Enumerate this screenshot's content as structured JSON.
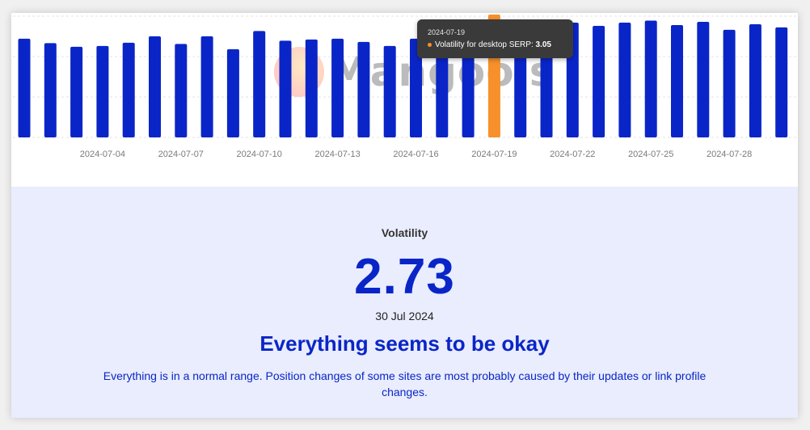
{
  "chart_data": {
    "type": "bar",
    "x": [
      "2024-07-01",
      "2024-07-02",
      "2024-07-03",
      "2024-07-04",
      "2024-07-05",
      "2024-07-06",
      "2024-07-07",
      "2024-07-08",
      "2024-07-09",
      "2024-07-10",
      "2024-07-11",
      "2024-07-12",
      "2024-07-13",
      "2024-07-14",
      "2024-07-15",
      "2024-07-16",
      "2024-07-17",
      "2024-07-18",
      "2024-07-19",
      "2024-07-20",
      "2024-07-21",
      "2024-07-22",
      "2024-07-23",
      "2024-07-24",
      "2024-07-25",
      "2024-07-26",
      "2024-07-27",
      "2024-07-28",
      "2024-07-29",
      "2024-07-30"
    ],
    "values": [
      2.45,
      2.34,
      2.25,
      2.27,
      2.35,
      2.51,
      2.32,
      2.51,
      2.19,
      2.64,
      2.4,
      2.43,
      2.45,
      2.37,
      2.27,
      2.45,
      2.55,
      2.5,
      3.05,
      2.55,
      2.8,
      2.85,
      2.77,
      2.85,
      2.9,
      2.79,
      2.87,
      2.67,
      2.81,
      2.73
    ],
    "tick_labels": [
      "2024-07-04",
      "2024-07-07",
      "2024-07-10",
      "2024-07-13",
      "2024-07-16",
      "2024-07-19",
      "2024-07-22",
      "2024-07-25",
      "2024-07-28"
    ],
    "highlight_index": 18,
    "ylim": [
      0,
      3.05
    ],
    "grid": true,
    "colors": {
      "bar": "#0a25c7",
      "highlight": "#f7902b",
      "grid": "#e3e3e3",
      "tick": "#7a7a7a"
    },
    "watermark": "Mangools",
    "tooltip": {
      "date": "2024-07-19",
      "label": "Volatility for desktop SERP:",
      "value": "3.05"
    }
  },
  "summary": {
    "label": "Volatility",
    "value": "2.73",
    "date": "30 Jul 2024",
    "title": "Everything seems to be okay",
    "description": "Everything is in a normal range. Position changes of some sites are most probably caused by their updates or link profile changes."
  }
}
